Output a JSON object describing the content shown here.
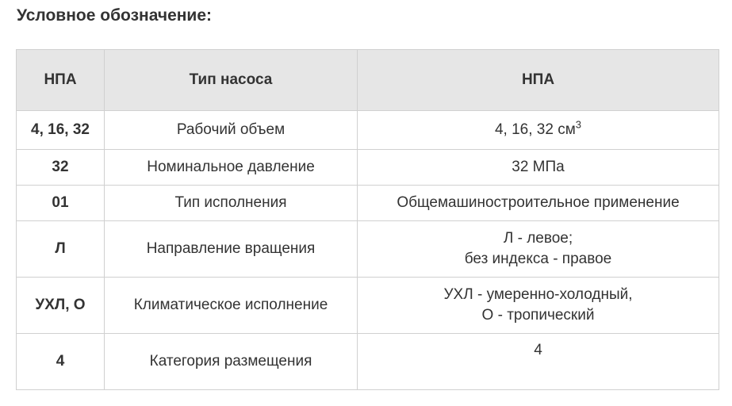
{
  "title": "Условное обозначение:",
  "headers": [
    "НПА",
    "Тип насоса",
    "НПА"
  ],
  "rows": [
    {
      "code": "4, 16, 32",
      "type": "Рабочий объем",
      "value": "4, 16, 32 см",
      "value_sup": "3"
    },
    {
      "code": "32",
      "type": "Номинальное давление",
      "value": "32 МПа"
    },
    {
      "code": "01",
      "type": "Тип исполнения",
      "value": "Общемашиностроительное применение"
    },
    {
      "code": "Л",
      "type": "Направление вращения",
      "value": "Л - левое;",
      "value2": "без индекса - правое"
    },
    {
      "code": "УХЛ, О",
      "type": "Климатическое исполнение",
      "value": "УХЛ - умеренно-холодный,",
      "value2": "О - тропический"
    },
    {
      "code": "4",
      "type": "Категория размещения",
      "value": "4"
    }
  ]
}
